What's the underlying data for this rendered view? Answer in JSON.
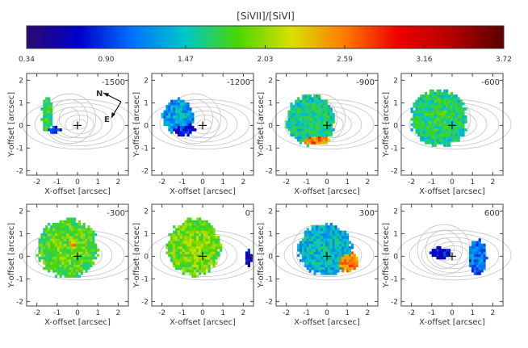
{
  "colorbar": {
    "title": "[SiVII]/[SiVI]",
    "ticks": [
      "0.34",
      "0.90",
      "1.47",
      "2.03",
      "2.59",
      "3.16",
      "3.72"
    ],
    "min": 0.34,
    "max": 3.72,
    "stops": [
      "#2a0a70",
      "#0000cc",
      "#0072ff",
      "#00c8c8",
      "#4cd600",
      "#d8e000",
      "#ff7a00",
      "#ee0000",
      "#b50000",
      "#5a0000"
    ]
  },
  "compass": {
    "north": "N",
    "east": "E"
  },
  "chart_data": [
    {
      "type": "heatmap",
      "panel_label": "-1500",
      "xlabel": "X-offset [arcsec]",
      "ylabel": "Y-offset [arcsec]",
      "xlim": [
        -2.5,
        2.5
      ],
      "ylim": [
        -2.2,
        2.3
      ],
      "xticks": [
        "-2",
        "-1",
        "0",
        "1",
        "2"
      ],
      "yticks": [
        "-2",
        "-1",
        "0",
        "1",
        "2"
      ],
      "regions": [
        {
          "cx": -1.55,
          "cy": 0.45,
          "rx": 0.28,
          "ry": 0.85,
          "value": 1.6
        },
        {
          "cx": -1.2,
          "cy": -0.25,
          "rx": 0.35,
          "ry": 0.15,
          "value": 0.8
        }
      ]
    },
    {
      "type": "heatmap",
      "panel_label": "-1200",
      "xlabel": "X-offset [arcsec]",
      "ylabel": "Y-offset [arcsec]",
      "xlim": [
        -2.5,
        2.5
      ],
      "ylim": [
        -2.2,
        2.3
      ],
      "xticks": [
        "-2",
        "-1",
        "0",
        "1",
        "2"
      ],
      "yticks": [
        "-2",
        "-1",
        "0",
        "1",
        "2"
      ],
      "regions": [
        {
          "cx": -1.25,
          "cy": 0.35,
          "rx": 0.8,
          "ry": 0.8,
          "value": 1.2
        },
        {
          "cx": -1.0,
          "cy": -0.2,
          "rx": 0.6,
          "ry": 0.3,
          "value": 0.7
        }
      ]
    },
    {
      "type": "heatmap",
      "panel_label": "-900",
      "xlabel": "X-offset [arcsec]",
      "ylabel": "Y-offset [arcsec]",
      "xlim": [
        -2.5,
        2.5
      ],
      "ylim": [
        -2.2,
        2.3
      ],
      "xticks": [
        "-2",
        "-1",
        "0",
        "1",
        "2"
      ],
      "yticks": [
        "-2",
        "-1",
        "0",
        "1",
        "2"
      ],
      "regions": [
        {
          "cx": -0.85,
          "cy": 0.2,
          "rx": 1.25,
          "ry": 1.15,
          "value": 1.5
        },
        {
          "cx": -0.6,
          "cy": -0.7,
          "rx": 0.7,
          "ry": 0.25,
          "value": 2.5
        }
      ]
    },
    {
      "type": "heatmap",
      "panel_label": "-600",
      "xlabel": "X-offset [arcsec]",
      "ylabel": "Y-offset [arcsec]",
      "xlim": [
        -2.5,
        2.5
      ],
      "ylim": [
        -2.2,
        2.3
      ],
      "xticks": [
        "-2",
        "-1",
        "0",
        "1",
        "2"
      ],
      "yticks": [
        "-2",
        "-1",
        "0",
        "1",
        "2"
      ],
      "regions": [
        {
          "cx": -0.7,
          "cy": 0.25,
          "rx": 1.45,
          "ry": 1.3,
          "value": 1.55
        }
      ]
    },
    {
      "type": "heatmap",
      "panel_label": "-300",
      "xlabel": "X-offset [arcsec]",
      "ylabel": "Y-offset [arcsec]",
      "xlim": [
        -2.5,
        2.5
      ],
      "ylim": [
        -2.2,
        2.3
      ],
      "xticks": [
        "-2",
        "-1",
        "0",
        "1",
        "2"
      ],
      "yticks": [
        "-2",
        "-1",
        "0",
        "1",
        "2"
      ],
      "regions": [
        {
          "cx": -0.55,
          "cy": 0.3,
          "rx": 1.55,
          "ry": 1.35,
          "value": 1.75
        },
        {
          "cx": -0.35,
          "cy": 0.5,
          "rx": 0.7,
          "ry": 0.6,
          "value": 2.3
        }
      ]
    },
    {
      "type": "heatmap",
      "panel_label": "0",
      "xlabel": "X-offset [arcsec]",
      "ylabel": "Y-offset [arcsec]",
      "xlim": [
        -2.5,
        2.5
      ],
      "ylim": [
        -2.2,
        2.3
      ],
      "xticks": [
        "-2",
        "-1",
        "0",
        "1",
        "2"
      ],
      "yticks": [
        "-2",
        "-1",
        "0",
        "1",
        "2"
      ],
      "regions": [
        {
          "cx": -0.5,
          "cy": 0.35,
          "rx": 1.35,
          "ry": 1.3,
          "value": 1.85
        },
        {
          "cx": 2.2,
          "cy": -0.1,
          "rx": 0.15,
          "ry": 0.4,
          "value": 0.6
        }
      ]
    },
    {
      "type": "heatmap",
      "panel_label": "300",
      "xlabel": "X-offset [arcsec]",
      "ylabel": "Y-offset [arcsec]",
      "xlim": [
        -2.5,
        2.5
      ],
      "ylim": [
        -2.2,
        2.3
      ],
      "xticks": [
        "-2",
        "-1",
        "0",
        "1",
        "2"
      ],
      "yticks": [
        "-2",
        "-1",
        "0",
        "1",
        "2"
      ],
      "regions": [
        {
          "cx": -0.15,
          "cy": 0.25,
          "rx": 1.35,
          "ry": 1.2,
          "value": 1.3
        },
        {
          "cx": 0.95,
          "cy": -0.3,
          "rx": 0.55,
          "ry": 0.45,
          "value": 2.5
        }
      ]
    },
    {
      "type": "heatmap",
      "panel_label": "600",
      "xlabel": "X-offset [arcsec]",
      "ylabel": "Y-offset [arcsec]",
      "xlim": [
        -2.5,
        2.5
      ],
      "ylim": [
        -2.2,
        2.3
      ],
      "xticks": [
        "-2",
        "-1",
        "0",
        "1",
        "2"
      ],
      "yticks": [
        "-2",
        "-1",
        "0",
        "1",
        "2"
      ],
      "regions": [
        {
          "cx": 1.2,
          "cy": -0.1,
          "rx": 0.45,
          "ry": 0.8,
          "value": 1.0
        },
        {
          "cx": -0.6,
          "cy": 0.1,
          "rx": 0.55,
          "ry": 0.25,
          "value": 0.6
        }
      ]
    }
  ]
}
